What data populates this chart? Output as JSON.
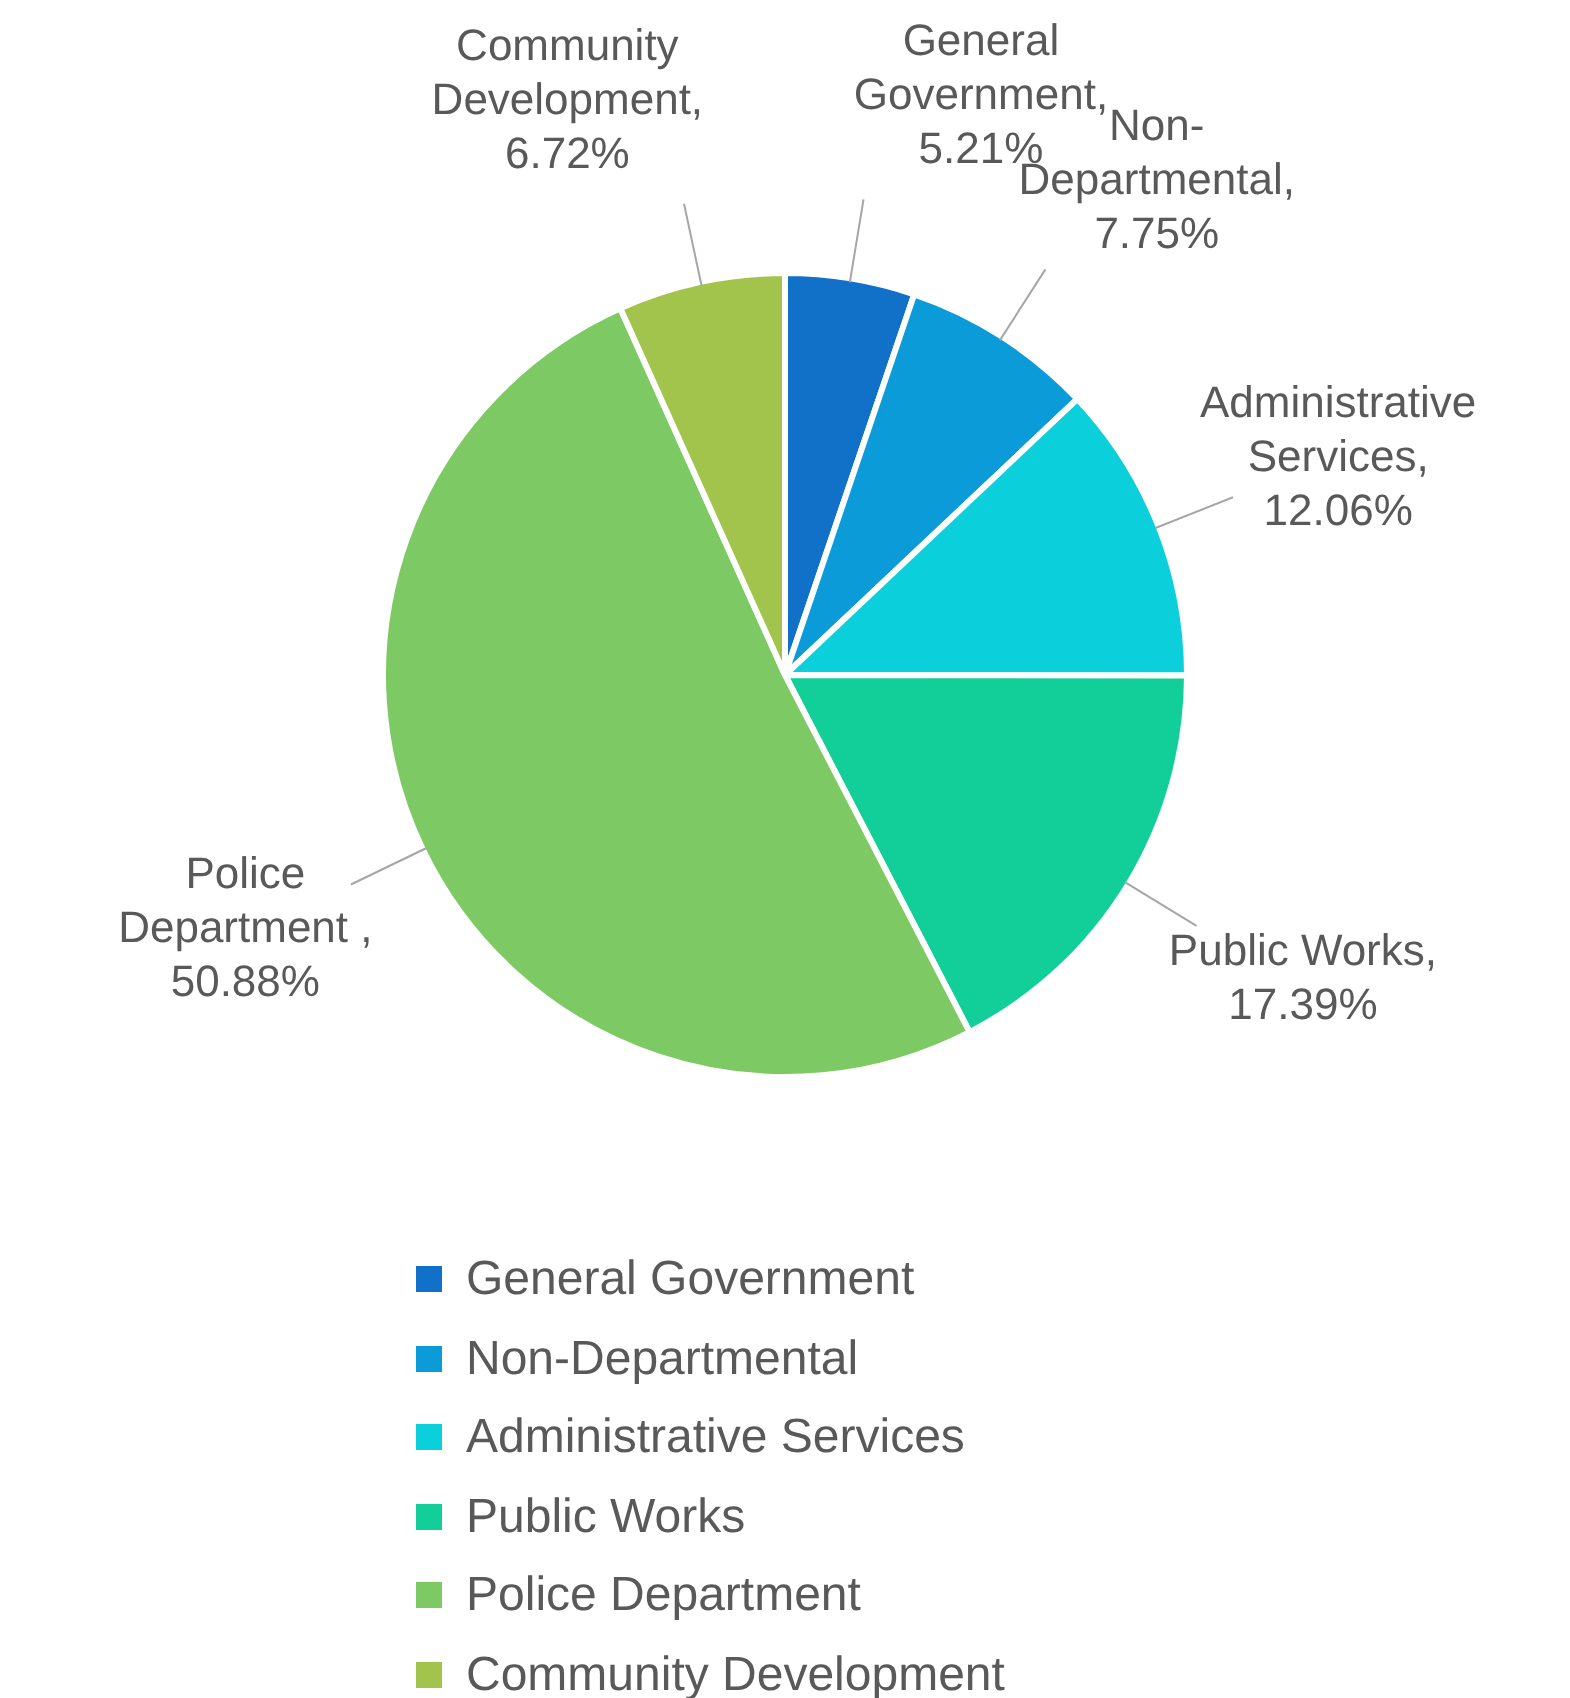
{
  "chart_data": {
    "type": "pie",
    "categories": [
      "General Government",
      "Non-Departmental",
      "Administrative Services",
      "Public Works",
      "Police Department",
      "Community Development"
    ],
    "values": [
      5.21,
      7.75,
      12.06,
      17.39,
      50.88,
      6.72
    ],
    "colors": [
      "#1170c8",
      "#0a9bd8",
      "#0ccfdc",
      "#12cf9a",
      "#7dc964",
      "#a3c44c"
    ],
    "value_labels": [
      "General Government, 5.21%",
      "Non-Departmental, 7.75%",
      "Administrative Services, 12.06%",
      "Public Works, 17.39%",
      "Police Department , 50.88%",
      "Community Development, 6.72%"
    ],
    "legend": "bottom"
  }
}
